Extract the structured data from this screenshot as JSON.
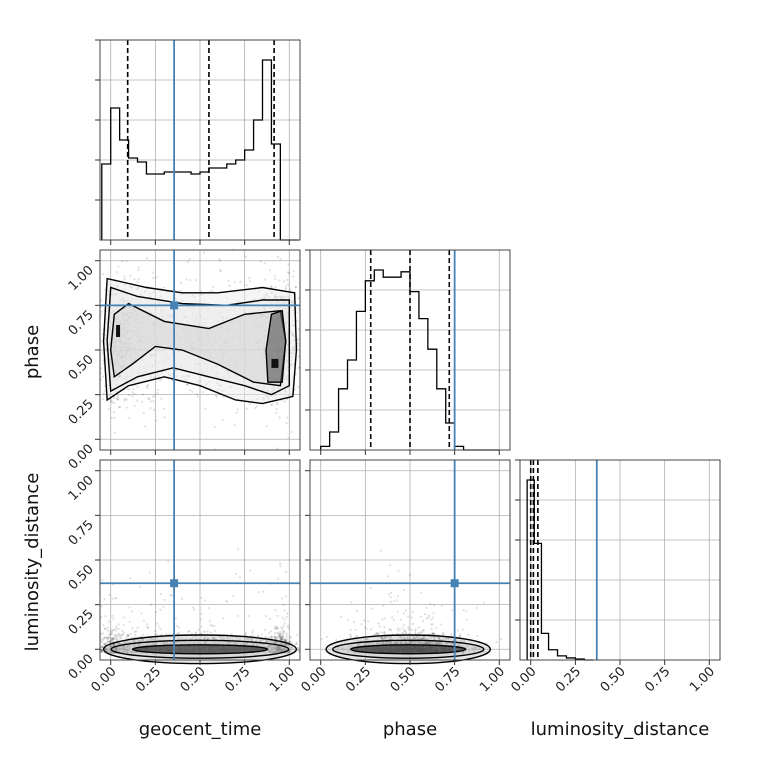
{
  "chart_data": {
    "type": "corner",
    "parameters": [
      "geocent_time",
      "phase",
      "luminosity_distance"
    ],
    "tick_values": [
      0.0,
      0.25,
      0.5,
      0.75,
      1.0
    ],
    "tick_labels": [
      "0.00",
      "0.25",
      "0.50",
      "0.75",
      "1.00"
    ],
    "ranges": [
      [
        -0.06,
        1.06
      ],
      [
        -0.06,
        1.06
      ],
      [
        -0.06,
        1.06
      ]
    ],
    "truth_values": [
      0.355,
      0.75,
      0.37
    ],
    "truth_color": "#4682b4",
    "contour_color": "#000000",
    "grid": true,
    "histograms": [
      {
        "parameter": "geocent_time",
        "bin_edges": [
          -0.05,
          0.0,
          0.05,
          0.1,
          0.15,
          0.2,
          0.25,
          0.3,
          0.35,
          0.4,
          0.45,
          0.5,
          0.55,
          0.6,
          0.65,
          0.7,
          0.75,
          0.8,
          0.85,
          0.9,
          0.95,
          1.0,
          1.05
        ],
        "counts": [
          0.38,
          0.66,
          0.5,
          0.41,
          0.39,
          0.33,
          0.33,
          0.34,
          0.34,
          0.34,
          0.33,
          0.34,
          0.36,
          0.36,
          0.38,
          0.4,
          0.45,
          0.6,
          0.9,
          0.48,
          0.0,
          0.0
        ],
        "quantiles": [
          0.095,
          0.55,
          0.915
        ]
      },
      {
        "parameter": "phase",
        "bin_edges": [
          0.0,
          0.05,
          0.1,
          0.15,
          0.2,
          0.25,
          0.3,
          0.35,
          0.4,
          0.45,
          0.5,
          0.55,
          0.6,
          0.65,
          0.7,
          0.75,
          0.8,
          0.85,
          0.9,
          0.95,
          1.0
        ],
        "counts": [
          0.02,
          0.1,
          0.34,
          0.5,
          0.77,
          0.94,
          1.0,
          0.96,
          0.96,
          0.99,
          0.88,
          0.73,
          0.56,
          0.34,
          0.15,
          0.02,
          0.0,
          0.0,
          0.0,
          0.0
        ],
        "quantiles": [
          0.28,
          0.5,
          0.72
        ]
      },
      {
        "parameter": "luminosity_distance",
        "bin_edges": [
          -0.02,
          0.02,
          0.06,
          0.1,
          0.15,
          0.2,
          0.25,
          0.3,
          0.35
        ],
        "counts": [
          0.88,
          0.57,
          0.13,
          0.05,
          0.02,
          0.01,
          0.005,
          0.0
        ],
        "quantiles": [
          0.0,
          0.015,
          0.04
        ]
      }
    ],
    "density_panels": [
      {
        "x": "geocent_time",
        "y": "phase",
        "description_mass": "bimodal in geocent_time near 0.05 and 0.95, phase spread 0.25-0.85"
      },
      {
        "x": "geocent_time",
        "y": "luminosity_distance",
        "description_mass": "concentrated near luminosity_distance 0.0 across all geocent_time"
      },
      {
        "x": "phase",
        "y": "luminosity_distance",
        "description_mass": "phase 0.1-0.95, luminosity_distance near 0.0"
      }
    ]
  }
}
